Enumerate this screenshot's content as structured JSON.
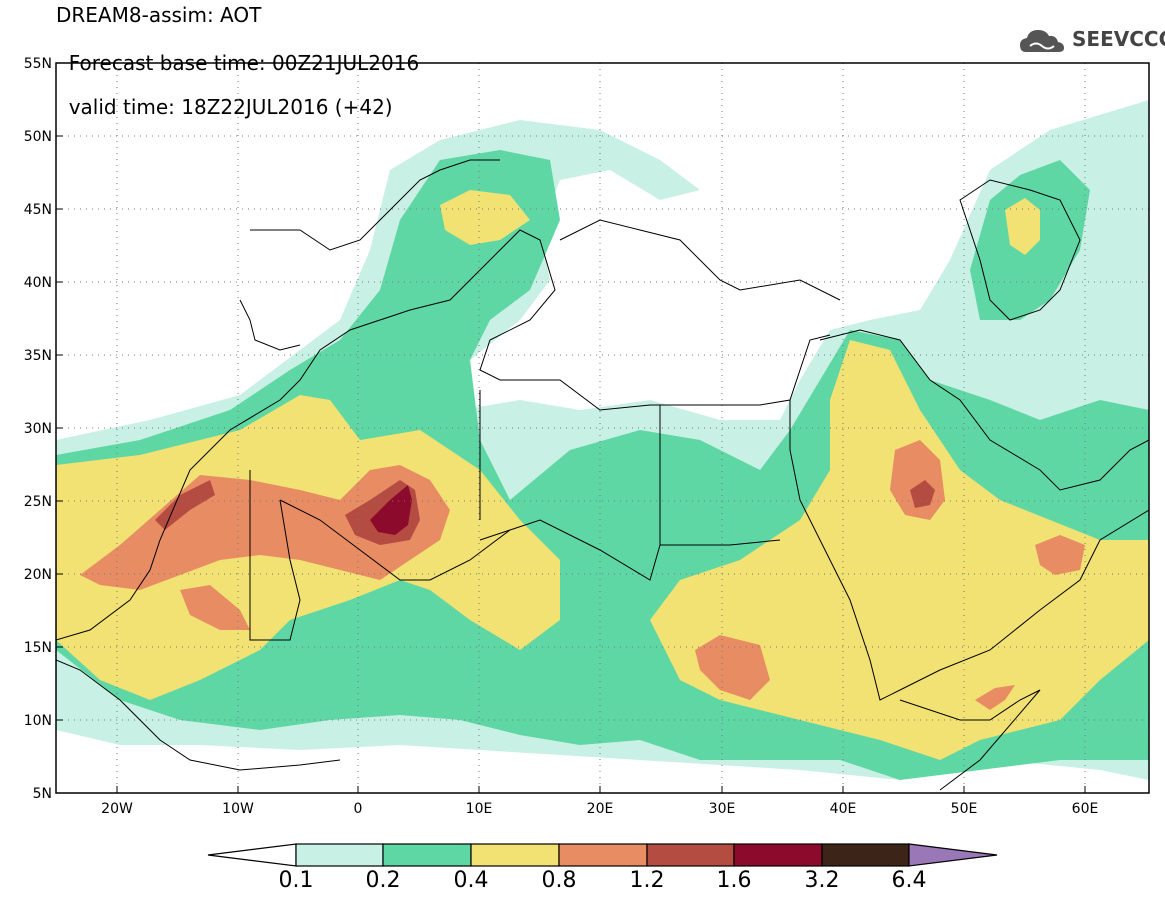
{
  "header": {
    "title": "DREAM8-assim: AOT",
    "base_time_label": "Forecast base time: 00Z21JUL2016",
    "valid_time_label": "valid time: 18Z22JUL2016 (+42)",
    "logo_text": "SEEVCCC"
  },
  "map": {
    "lon_range": [
      -25,
      65
    ],
    "lat_range": [
      5,
      55
    ],
    "lon_ticks": [
      "20W",
      "10W",
      "0",
      "10E",
      "20E",
      "30E",
      "40E",
      "50E",
      "60E"
    ],
    "lat_ticks": [
      "55N",
      "50N",
      "45N",
      "40N",
      "35N",
      "30N",
      "25N",
      "20N",
      "15N",
      "10N",
      "5N"
    ]
  },
  "legend": {
    "thresholds": [
      "0.1",
      "0.2",
      "0.4",
      "0.8",
      "1.2",
      "1.6",
      "3.2",
      "6.4"
    ],
    "colors": [
      "#c8f0e4",
      "#5fd7a5",
      "#f2e173",
      "#e88c64",
      "#b44c42",
      "#8c0a2c",
      "#3c2418",
      "#9a78b8"
    ]
  },
  "colors": {
    "aot_01_02": "#c8f0e4",
    "aot_02_04": "#5fd7a5",
    "aot_04_08": "#f2e173",
    "aot_08_12": "#e88c64",
    "aot_12_16": "#b44c42",
    "aot_16_32": "#8c0a2c"
  }
}
